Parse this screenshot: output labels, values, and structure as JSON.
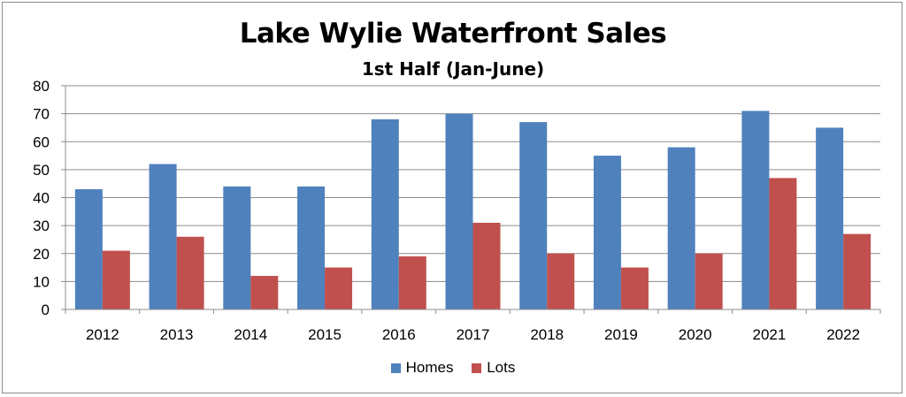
{
  "chart_data": {
    "type": "bar",
    "title": "Lake Wylie Waterfront Sales",
    "subtitle": "1st Half (Jan-June)",
    "categories": [
      "2012",
      "2013",
      "2014",
      "2015",
      "2016",
      "2017",
      "2018",
      "2019",
      "2020",
      "2021",
      "2022"
    ],
    "series": [
      {
        "name": "Homes",
        "color": "#4f81bd",
        "values": [
          43,
          52,
          44,
          44,
          68,
          70,
          67,
          55,
          58,
          71,
          65
        ]
      },
      {
        "name": "Lots",
        "color": "#c0504d",
        "values": [
          21,
          26,
          12,
          15,
          19,
          31,
          20,
          15,
          20,
          47,
          27
        ]
      }
    ],
    "ylim": [
      0,
      80
    ],
    "yticks": [
      0,
      10,
      20,
      30,
      40,
      50,
      60,
      70,
      80
    ],
    "grid": true,
    "legend": "bottom"
  }
}
